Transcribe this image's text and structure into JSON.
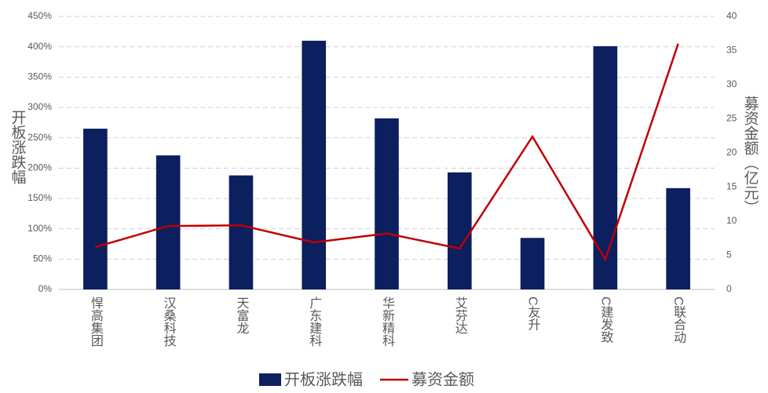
{
  "chart_data": {
    "type": "combo",
    "categories": [
      "悍高集团",
      "汉桑科技",
      "天富龙",
      "广东建科",
      "华新精科",
      "艾芬达",
      "C友升",
      "C建发致",
      "C联合动"
    ],
    "series": [
      {
        "name": "开板涨跌幅",
        "type": "bar",
        "color": "#0c1f5e",
        "values": [
          265,
          221,
          188,
          410,
          282,
          193,
          85,
          401,
          167
        ]
      },
      {
        "name": "募资金额",
        "type": "line",
        "axis": "y2",
        "color": "#c00000",
        "values": [
          6.2,
          9.3,
          9.4,
          6.9,
          8.2,
          6.0,
          22.4,
          4.4,
          36.0
        ]
      }
    ],
    "ylabel": "开板涨跌幅",
    "y2label": "募资金额（亿元）",
    "ylim": [
      0,
      450
    ],
    "yticks": [
      {
        "value": 0,
        "label": "0%"
      },
      {
        "value": 50,
        "label": "50%"
      },
      {
        "value": 100,
        "label": "100%"
      },
      {
        "value": 150,
        "label": "150%"
      },
      {
        "value": 200,
        "label": "200%"
      },
      {
        "value": 250,
        "label": "250%"
      },
      {
        "value": 300,
        "label": "300%"
      },
      {
        "value": 350,
        "label": "350%"
      },
      {
        "value": 400,
        "label": "400%"
      },
      {
        "value": 450,
        "label": "450%"
      }
    ],
    "y2lim": [
      0,
      40
    ],
    "y2ticks": [
      0,
      5,
      10,
      15,
      20,
      25,
      30,
      35,
      40
    ],
    "grid": true,
    "legend": "bottom"
  }
}
